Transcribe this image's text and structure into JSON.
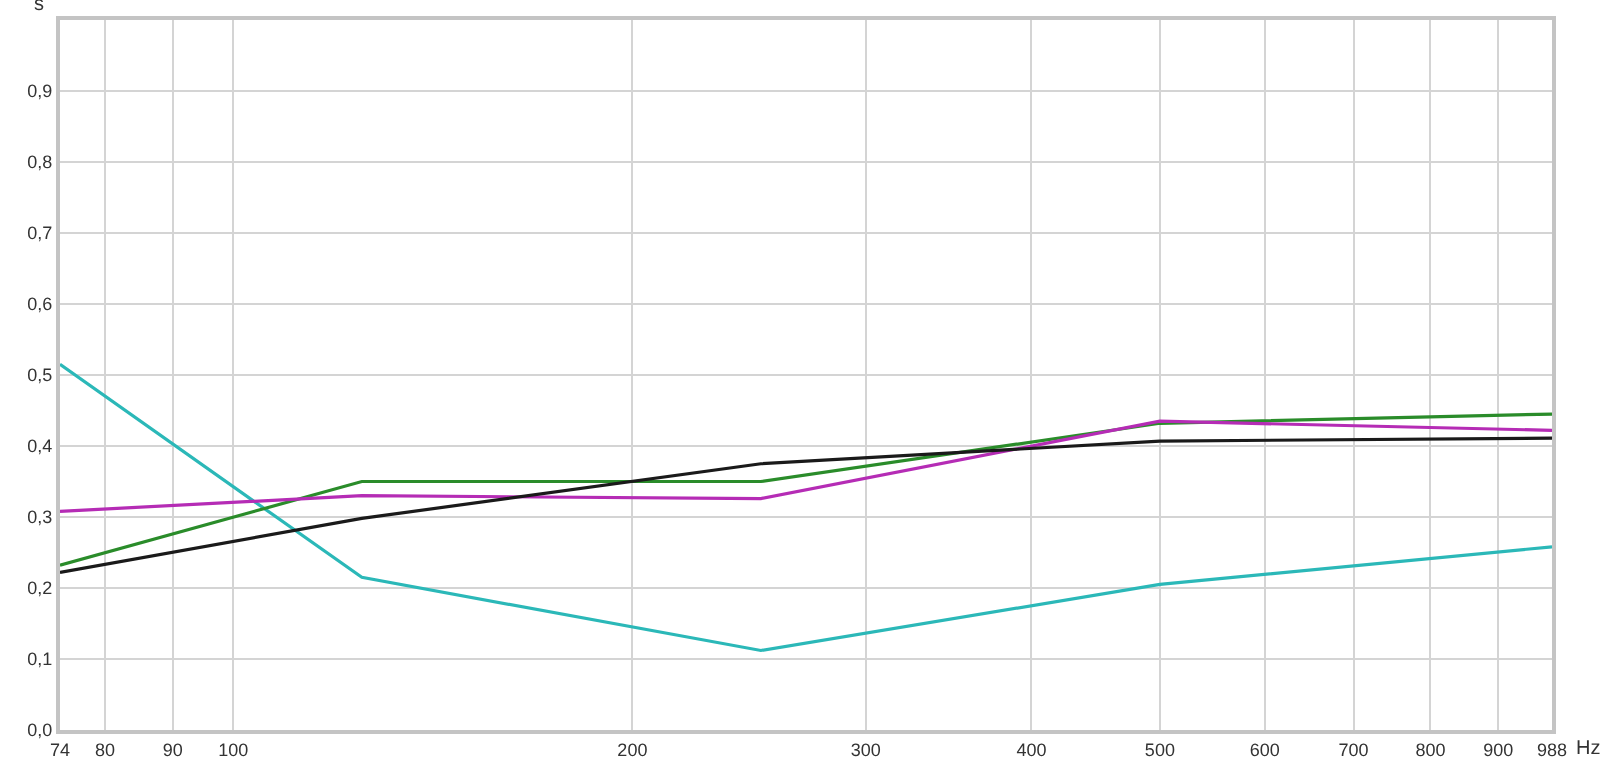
{
  "chart_data": {
    "type": "line",
    "xlabel": "Hz",
    "ylabel": "s",
    "log": "x",
    "x": [
      74,
      125,
      250,
      500,
      988
    ],
    "series": [
      {
        "color": "#2bb8b8",
        "values": [
          0.515,
          0.215,
          0.112,
          0.205,
          0.258
        ]
      },
      {
        "color": "#2a8c2a",
        "values": [
          0.232,
          0.35,
          0.35,
          0.432,
          0.445
        ]
      },
      {
        "color": "#b52cb5",
        "values": [
          0.308,
          0.33,
          0.326,
          0.435,
          0.422
        ]
      },
      {
        "color": "#1a1a1a",
        "values": [
          0.222,
          0.298,
          0.375,
          0.407,
          0.411
        ]
      }
    ],
    "xlim": [
      74,
      988
    ],
    "ylim": [
      0,
      1
    ],
    "xticks": [
      74,
      80,
      90,
      100,
      200,
      300,
      400,
      500,
      600,
      700,
      800,
      900,
      988
    ],
    "yticks": [
      {
        "value": 0,
        "label": "0,0"
      },
      {
        "value": 0.1,
        "label": "0,1"
      },
      {
        "value": 0.2,
        "label": "0,2"
      },
      {
        "value": 0.3,
        "label": "0,3"
      },
      {
        "value": 0.4,
        "label": "0,4"
      },
      {
        "value": 0.5,
        "label": "0,5"
      },
      {
        "value": 0.6,
        "label": "0,6"
      },
      {
        "value": 0.7,
        "label": "0,7"
      },
      {
        "value": 0.8,
        "label": "0,8"
      },
      {
        "value": 0.9,
        "label": "0,9"
      }
    ],
    "grid": true,
    "marker": "none",
    "line_style": "solid"
  }
}
